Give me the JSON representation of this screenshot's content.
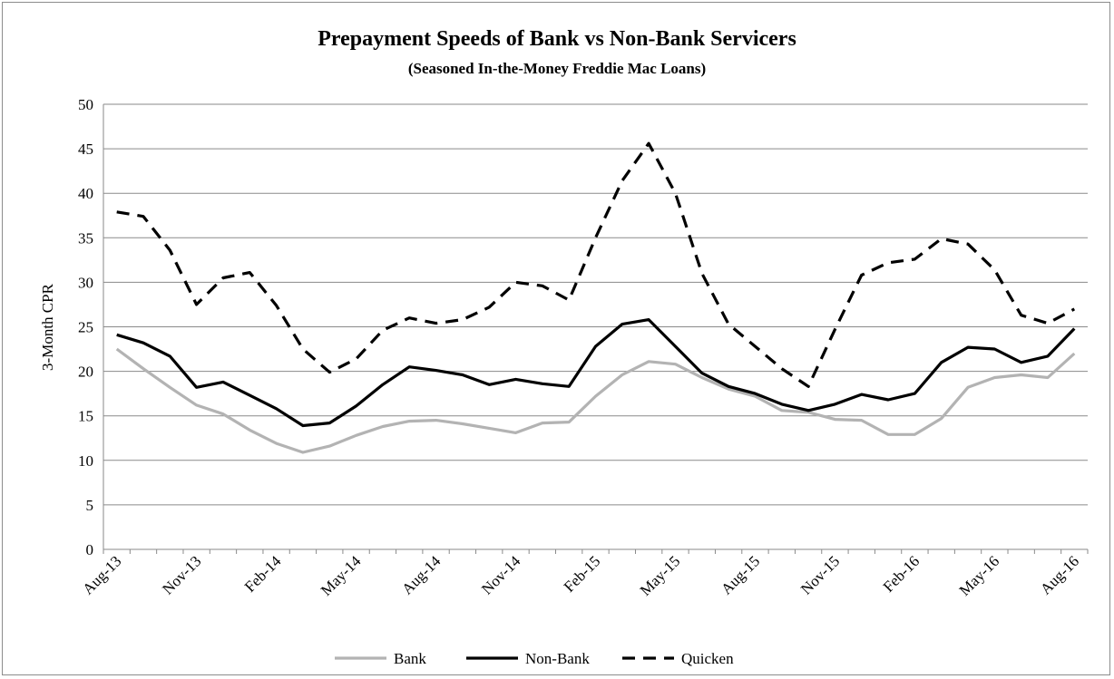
{
  "chart_data": {
    "type": "line",
    "title": "Prepayment Speeds of Bank vs Non-Bank Servicers",
    "subtitle": "(Seasoned In-the-Money Freddie Mac Loans)",
    "ylabel": "3-Month CPR",
    "xlabel": "",
    "ylim": [
      0,
      50
    ],
    "yticks": [
      0,
      5,
      10,
      15,
      20,
      25,
      30,
      35,
      40,
      45,
      50
    ],
    "grid": true,
    "legend_position": "bottom",
    "x": [
      "Aug-13",
      "Sep-13",
      "Oct-13",
      "Nov-13",
      "Dec-13",
      "Jan-14",
      "Feb-14",
      "Mar-14",
      "Apr-14",
      "May-14",
      "Jun-14",
      "Jul-14",
      "Aug-14",
      "Sep-14",
      "Oct-14",
      "Nov-14",
      "Dec-14",
      "Jan-15",
      "Feb-15",
      "Mar-15",
      "Apr-15",
      "May-15",
      "Jun-15",
      "Jul-15",
      "Aug-15",
      "Sep-15",
      "Oct-15",
      "Nov-15",
      "Dec-15",
      "Jan-16",
      "Feb-16",
      "Mar-16",
      "Apr-16",
      "May-16",
      "Jun-16",
      "Jul-16",
      "Aug-16"
    ],
    "x_tick_labels": [
      "Aug-13",
      "Nov-13",
      "Feb-14",
      "May-14",
      "Aug-14",
      "Nov-14",
      "Feb-15",
      "May-15",
      "Aug-15",
      "Nov-15",
      "Feb-16",
      "May-16",
      "Aug-16"
    ],
    "series": [
      {
        "name": "Bank",
        "color": "#b3b3b3",
        "dash": "solid",
        "values": [
          22.5,
          20.3,
          18.2,
          16.2,
          15.2,
          13.4,
          11.9,
          10.9,
          11.6,
          12.8,
          13.8,
          14.4,
          14.5,
          14.1,
          13.6,
          13.1,
          14.2,
          14.3,
          17.2,
          19.6,
          21.1,
          20.8,
          19.3,
          18.0,
          17.2,
          15.6,
          15.4,
          14.6,
          14.5,
          12.9,
          12.9,
          14.7,
          18.2,
          19.3,
          19.6,
          19.3,
          22.0
        ]
      },
      {
        "name": "Non-Bank",
        "color": "#000000",
        "dash": "solid",
        "values": [
          24.1,
          23.2,
          21.7,
          18.2,
          18.8,
          17.3,
          15.8,
          13.9,
          14.2,
          16.1,
          18.5,
          20.5,
          20.1,
          19.6,
          18.5,
          19.1,
          18.6,
          18.3,
          22.8,
          25.3,
          25.8,
          22.8,
          19.8,
          18.3,
          17.5,
          16.3,
          15.6,
          16.3,
          17.4,
          16.8,
          17.5,
          21.0,
          22.7,
          22.5,
          21.0,
          21.7,
          24.8
        ]
      },
      {
        "name": "Quicken",
        "color": "#000000",
        "dash": "dashed",
        "values": [
          37.9,
          37.4,
          33.6,
          27.5,
          30.5,
          31.1,
          27.4,
          22.5,
          19.9,
          21.4,
          24.6,
          26.0,
          25.4,
          25.8,
          27.2,
          30.0,
          29.6,
          28.0,
          35.0,
          41.4,
          45.6,
          40.0,
          31.0,
          25.3,
          22.8,
          20.3,
          18.3,
          24.7,
          30.8,
          32.2,
          32.6,
          34.9,
          34.3,
          31.4,
          26.3,
          25.4,
          27.0
        ]
      }
    ]
  }
}
